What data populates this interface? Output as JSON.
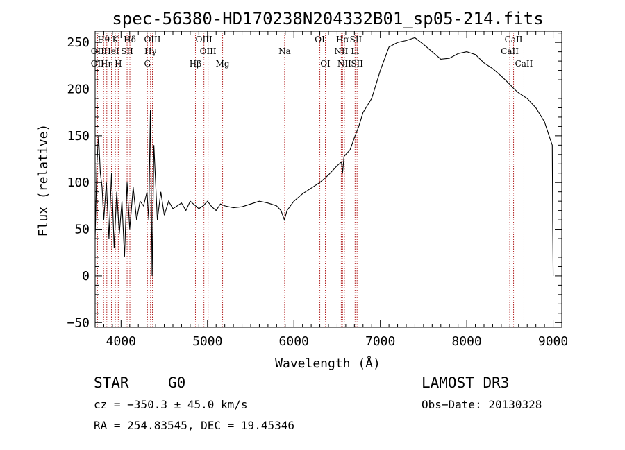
{
  "chart_data": {
    "type": "line",
    "title": "spec-56380-HD170238N204332B01_sp05-214.fits",
    "xlabel": "Wavelength (Å)",
    "ylabel": "Flux (relative)",
    "xlim": [
      3700,
      9100
    ],
    "ylim": [
      -55,
      262
    ],
    "xticks": [
      4000,
      5000,
      6000,
      7000,
      8000,
      9000
    ],
    "yticks": [
      -50,
      0,
      50,
      100,
      150,
      200,
      250
    ],
    "grid": false,
    "series": [
      {
        "name": "flux",
        "x": [
          3700,
          3720,
          3740,
          3760,
          3780,
          3800,
          3830,
          3860,
          3890,
          3920,
          3950,
          3980,
          4010,
          4040,
          4070,
          4100,
          4140,
          4180,
          4220,
          4260,
          4300,
          4320,
          4340,
          4360,
          4380,
          4420,
          4460,
          4500,
          4550,
          4600,
          4650,
          4700,
          4750,
          4800,
          4850,
          4900,
          4950,
          5000,
          5050,
          5100,
          5150,
          5200,
          5300,
          5400,
          5500,
          5600,
          5700,
          5800,
          5850,
          5890,
          5920,
          6000,
          6100,
          6200,
          6300,
          6400,
          6500,
          6550,
          6563,
          6580,
          6650,
          6700,
          6750,
          6800,
          6900,
          7000,
          7100,
          7200,
          7300,
          7400,
          7500,
          7600,
          7700,
          7800,
          7900,
          8000,
          8100,
          8200,
          8300,
          8400,
          8500,
          8550,
          8600,
          8700,
          8800,
          8900,
          8960,
          8990,
          8995,
          9000
        ],
        "y": [
          40,
          120,
          150,
          110,
          95,
          60,
          100,
          40,
          110,
          30,
          90,
          45,
          80,
          20,
          100,
          50,
          95,
          60,
          80,
          75,
          90,
          60,
          178,
          0,
          140,
          60,
          90,
          65,
          80,
          72,
          75,
          78,
          70,
          80,
          76,
          72,
          75,
          80,
          74,
          70,
          77,
          75,
          73,
          74,
          77,
          80,
          78,
          75,
          70,
          60,
          70,
          80,
          88,
          94,
          100,
          108,
          118,
          122,
          110,
          128,
          135,
          148,
          160,
          175,
          190,
          220,
          245,
          250,
          252,
          255,
          248,
          240,
          232,
          233,
          238,
          240,
          237,
          228,
          222,
          214,
          205,
          200,
          196,
          190,
          180,
          165,
          148,
          140,
          60,
          0
        ]
      }
    ],
    "spectral_lines": [
      {
        "label": "Hθ",
        "wavelength": 3798,
        "row": 0
      },
      {
        "label": "OII",
        "wavelength": 3727,
        "row": 1
      },
      {
        "label": "OII",
        "wavelength": 3727,
        "row": 2
      },
      {
        "label": "HeI",
        "wavelength": 3889,
        "row": 1
      },
      {
        "label": "Hη",
        "wavelength": 3835,
        "row": 2
      },
      {
        "label": "K",
        "wavelength": 3934,
        "row": 0
      },
      {
        "label": "SII",
        "wavelength": 4070,
        "row": 1
      },
      {
        "label": "H",
        "wavelength": 3968,
        "row": 2
      },
      {
        "label": "Hδ",
        "wavelength": 4102,
        "row": 0
      },
      {
        "label": "OIII",
        "wavelength": 4363,
        "row": 0
      },
      {
        "label": "Hγ",
        "wavelength": 4341,
        "row": 1
      },
      {
        "label": "G",
        "wavelength": 4305,
        "row": 2
      },
      {
        "label": "OIII",
        "wavelength": 4959,
        "row": 0
      },
      {
        "label": "OIII",
        "wavelength": 5007,
        "row": 1
      },
      {
        "label": "Hβ",
        "wavelength": 4861,
        "row": 2
      },
      {
        "label": "Mg",
        "wavelength": 5175,
        "row": 2
      },
      {
        "label": "Na",
        "wavelength": 5893,
        "row": 1
      },
      {
        "label": "OI",
        "wavelength": 6300,
        "row": 0
      },
      {
        "label": "OI",
        "wavelength": 6364,
        "row": 2
      },
      {
        "label": "Hα",
        "wavelength": 6563,
        "row": 0
      },
      {
        "label": "NII",
        "wavelength": 6548,
        "row": 1
      },
      {
        "label": "NII",
        "wavelength": 6584,
        "row": 2
      },
      {
        "label": "SII",
        "wavelength": 6717,
        "row": 0
      },
      {
        "label": "Li",
        "wavelength": 6708,
        "row": 1
      },
      {
        "label": "SII",
        "wavelength": 6731,
        "row": 2
      },
      {
        "label": "CaII",
        "wavelength": 8542,
        "row": 0
      },
      {
        "label": "CaII",
        "wavelength": 8498,
        "row": 1
      },
      {
        "label": "CaII",
        "wavelength": 8662,
        "row": 2
      }
    ]
  },
  "info": {
    "class_label": "STAR",
    "subclass": "G0",
    "survey": "LAMOST DR3",
    "cz": "cz = −350.3 ± 45.0 km/s",
    "obs_date": "Obs−Date: 20130328",
    "coords": "RA = 254.83545, DEC =  19.45346"
  },
  "colors": {
    "line": "#000000",
    "marker": "#b22222",
    "background": "#ffffff"
  }
}
